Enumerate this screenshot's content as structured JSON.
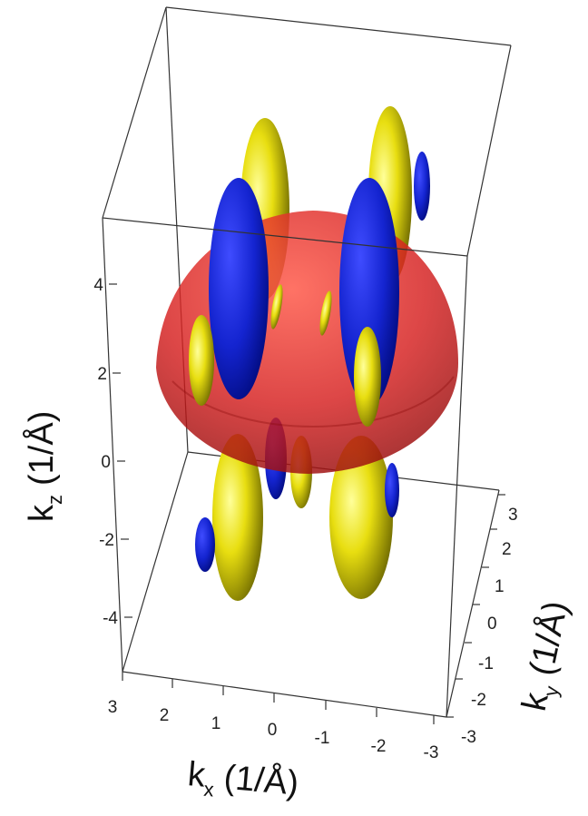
{
  "chart_data": {
    "type": "3d-isosurface",
    "axes": {
      "x": {
        "label": "k",
        "subscript": "x",
        "unit": "(1/Å)",
        "ticks": [
          "3",
          "2",
          "1",
          "0",
          "-1",
          "-2",
          "-3"
        ]
      },
      "y": {
        "label": "k",
        "subscript": "y",
        "unit": "(1/Å)",
        "ticks": [
          "-3",
          "-2",
          "-1",
          "0",
          "1",
          "2",
          "3"
        ]
      },
      "z": {
        "label": "k",
        "subscript": "z",
        "unit": "(1/Å)",
        "ticks": [
          "4",
          "2",
          "0",
          "-2",
          "-4"
        ]
      }
    },
    "colors": {
      "sphere": "#d81e1e",
      "positive_lobes": "#d8d000",
      "negative_lobes": "#1020c8",
      "box_lines": "#333333"
    }
  }
}
